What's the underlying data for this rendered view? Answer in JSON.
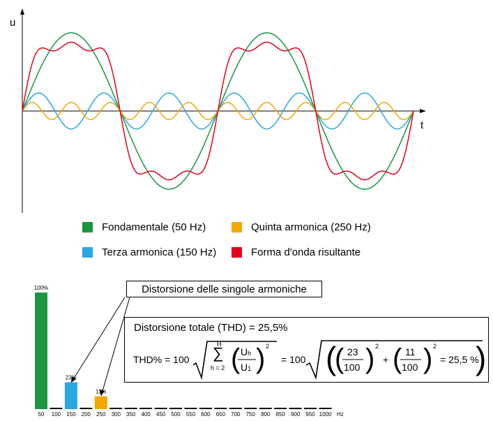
{
  "chart_data": [
    {
      "type": "line",
      "xlabel": "t",
      "ylabel": "u",
      "series": [
        {
          "name": "Fondamentale (50 Hz)",
          "color": "#1a9641",
          "harmonic": 1,
          "amplitude": 1.0
        },
        {
          "name": "Terza armonica (150 Hz)",
          "color": "#29a7e0",
          "harmonic": 3,
          "amplitude": 0.23
        },
        {
          "name": "Quinta armonica (250 Hz)",
          "color": "#f5a800",
          "harmonic": 5,
          "amplitude": 0.11
        },
        {
          "name": "Forma d'onda risultante",
          "color": "#e2001a",
          "components": [
            1,
            3,
            5
          ]
        }
      ],
      "periods_shown": 2
    },
    {
      "type": "bar",
      "categories": [
        "50",
        "100",
        "150",
        "200",
        "250",
        "300",
        "350",
        "400",
        "450",
        "500",
        "550",
        "600",
        "650",
        "700",
        "750",
        "800",
        "850",
        "900",
        "950",
        "1000"
      ],
      "values": [
        100,
        0,
        23,
        0,
        11,
        0,
        0,
        0,
        0,
        0,
        0,
        0,
        0,
        0,
        0,
        0,
        0,
        0,
        0,
        0
      ],
      "bar_colors": {
        "50": "#1a9641",
        "150": "#29a7e0",
        "250": "#f5a800",
        "other": "#000000"
      },
      "data_labels": [
        {
          "category": "50",
          "text": "100%"
        },
        {
          "category": "150",
          "text": "23%"
        },
        {
          "category": "250",
          "text": "11%"
        }
      ],
      "xunit": "Hz",
      "ylim": [
        0,
        100
      ]
    }
  ],
  "callout": {
    "text": "Distorsione delle singole armoniche"
  },
  "thd": {
    "total": "Distorsione totale (THD) = 25,5%",
    "lhs": "THD% = 100",
    "sum_top": "H",
    "sum_sym": "∑",
    "sum_bot": "h = 2",
    "uh": "U",
    "uh_sub": "h",
    "u1": "U",
    "u1_sub": "1",
    "sq": "2",
    "eq2": "= 100",
    "n1": "23",
    "d1": "100",
    "plus": "+",
    "n2": "11",
    "d2": "100",
    "result": "= 25,5 %"
  }
}
